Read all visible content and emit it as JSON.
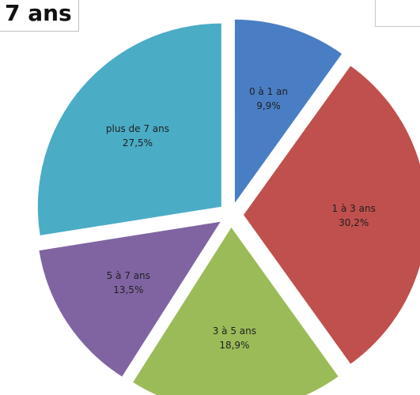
{
  "chart_data": {
    "type": "pie",
    "exploded": true,
    "title_fragment": "7 ans",
    "slices": [
      {
        "label": "0 à 1 an",
        "value": 9.9,
        "display": "9,9%",
        "color": "#4a7ec4"
      },
      {
        "label": "1 à 3 ans",
        "value": 30.2,
        "display": "30,2%",
        "color": "#c0504d"
      },
      {
        "label": "3 à 5 ans",
        "value": 18.9,
        "display": "18,9%",
        "color": "#9bbb59"
      },
      {
        "label": "5 à 7 ans",
        "value": 13.5,
        "display": "13,5%",
        "color": "#8064a2"
      },
      {
        "label": "plus de 7 ans",
        "value": 27.5,
        "display": "27,5%",
        "color": "#4bacc6"
      }
    ]
  }
}
